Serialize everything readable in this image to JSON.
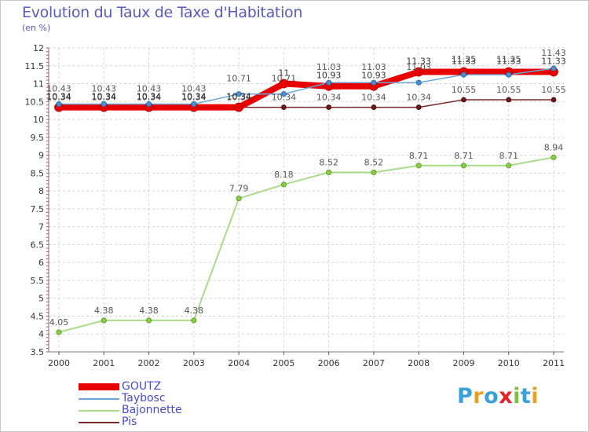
{
  "title": "Evolution du Taux de Taxe d'Habitation",
  "subtitle": "(en %)",
  "logo": {
    "text": "Proxiti",
    "letter_colors": [
      "#3aa0d8",
      "#e8a020",
      "#3aa0d8",
      "#e8202a",
      "#7cc040",
      "#3aa0d8",
      "#e8a020"
    ]
  },
  "chart_data": {
    "type": "line",
    "title": "Evolution du Taux de Taxe d'Habitation",
    "subtitle": "(en %)",
    "xlabel": "",
    "ylabel": "",
    "categories": [
      "2000",
      "2001",
      "2002",
      "2003",
      "2004",
      "2005",
      "2006",
      "2007",
      "2008",
      "2009",
      "2010",
      "2011"
    ],
    "ylim": [
      3.5,
      12
    ],
    "yticks": [
      "3.5",
      "4",
      "4.5",
      "5",
      "5.5",
      "6",
      "6.5",
      "7",
      "7.5",
      "8",
      "8.5",
      "9",
      "9.5",
      "10",
      "10.5",
      "11",
      "11.5",
      "12"
    ],
    "grid": true,
    "legend_position": "bottom-left",
    "series": [
      {
        "name": "GOUTZ",
        "color": "#e80000",
        "values": [
          10.34,
          10.34,
          10.34,
          10.34,
          10.34,
          11,
          10.93,
          10.93,
          11.33,
          11.33,
          11.33,
          11.33
        ],
        "labels": [
          "10.34",
          "10.34",
          "10.34",
          "10.34",
          "10.34",
          "11",
          "10.93",
          "10.93",
          "11.33",
          "11.33",
          "11.33",
          "11.33"
        ]
      },
      {
        "name": "Taybosc",
        "color": "#6aa8d8",
        "values": [
          10.43,
          10.43,
          10.43,
          10.43,
          10.71,
          10.71,
          11.03,
          11.03,
          11.03,
          11.25,
          11.25,
          11.43
        ],
        "labels": [
          "10.43",
          "10.43",
          "10.43",
          "10.43",
          "10.71",
          "10.71",
          "11.03",
          "11.03",
          "11.03",
          "11.25",
          "11.25",
          "11.43"
        ]
      },
      {
        "name": "Bajonnette",
        "color": "#a8dc88",
        "values": [
          4.05,
          4.38,
          4.38,
          4.38,
          7.79,
          8.18,
          8.52,
          8.52,
          8.71,
          8.71,
          8.71,
          8.94
        ],
        "labels": [
          "4.05",
          "4.38",
          "4.38",
          "4.38",
          "7.79",
          "8.18",
          "8.52",
          "8.52",
          "8.71",
          "8.71",
          "8.71",
          "8.94"
        ]
      },
      {
        "name": "Pis",
        "color": "#7a2a2a",
        "values": [
          10.34,
          10.34,
          10.34,
          10.34,
          10.34,
          10.34,
          10.34,
          10.34,
          10.34,
          10.55,
          10.55,
          10.55
        ],
        "labels": [
          "10.34",
          "10.34",
          "10.34",
          "10.34",
          "10.34",
          "10.34",
          "10.34",
          "10.34",
          "10.34",
          "10.55",
          "10.55",
          "10.55"
        ]
      }
    ]
  }
}
